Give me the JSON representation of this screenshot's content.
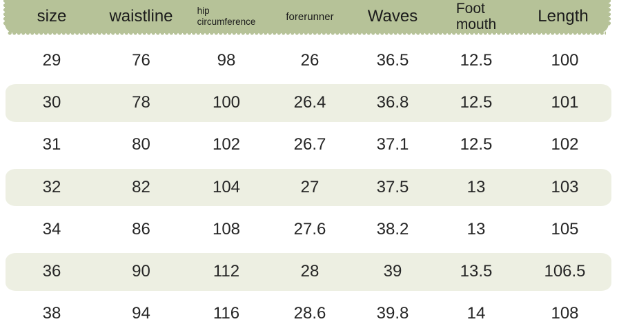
{
  "colors": {
    "page_bg": "#ffffff",
    "header_bg": "#b6c298",
    "row_alt_bg": "#edefe2",
    "header_text": "#1b1b1b",
    "cell_text": "#262626"
  },
  "table": {
    "columns": [
      {
        "label": "size",
        "size": "large"
      },
      {
        "label": "waistline",
        "size": "large"
      },
      {
        "label": "hip circumference",
        "lines": [
          "hip",
          "circumference"
        ],
        "size": "small"
      },
      {
        "label": "forerunner",
        "size": "medium"
      },
      {
        "label": "Waves",
        "size": "large"
      },
      {
        "label": "Foot mouth",
        "lines": [
          "Foot",
          "mouth"
        ],
        "size": "large"
      },
      {
        "label": "Length",
        "size": "large"
      }
    ],
    "rows": [
      [
        "29",
        "76",
        "98",
        "26",
        "36.5",
        "12.5",
        "100"
      ],
      [
        "30",
        "78",
        "100",
        "26.4",
        "36.8",
        "12.5",
        "101"
      ],
      [
        "31",
        "80",
        "102",
        "26.7",
        "37.1",
        "12.5",
        "102"
      ],
      [
        "32",
        "82",
        "104",
        "27",
        "37.5",
        "13",
        "103"
      ],
      [
        "34",
        "86",
        "108",
        "27.6",
        "38.2",
        "13",
        "105"
      ],
      [
        "36",
        "90",
        "112",
        "28",
        "39",
        "13.5",
        "106.5"
      ],
      [
        "38",
        "94",
        "116",
        "28.6",
        "39.8",
        "14",
        "108"
      ]
    ]
  }
}
